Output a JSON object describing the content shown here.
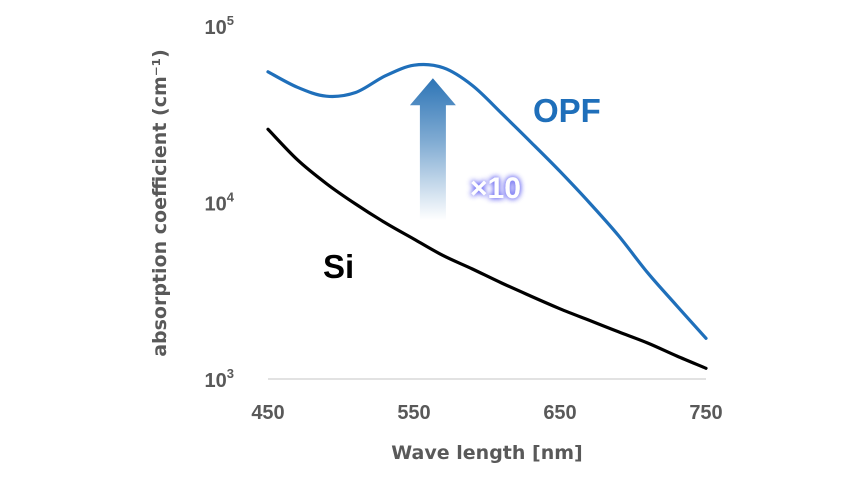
{
  "chart_data": {
    "type": "line",
    "title": "",
    "xlabel": "Wave length [nm]",
    "ylabel": "absorption coefficient (cm⁻¹)",
    "xlim": [
      450,
      750
    ],
    "ylim": [
      1000,
      100000
    ],
    "yscale": "log",
    "x_ticks": [
      450,
      550,
      650,
      750
    ],
    "x_tick_labels": [
      "450",
      "550",
      "650",
      "750"
    ],
    "y_ticks": [
      {
        "value": 1000,
        "base": "10",
        "exp": "3"
      },
      {
        "value": 10000,
        "base": "10",
        "exp": "4"
      },
      {
        "value": 100000,
        "base": "10",
        "exp": "5"
      }
    ],
    "grid": false,
    "series": [
      {
        "name": "OPF",
        "color": "#1f6fba",
        "x": [
          450,
          470,
          490,
          510,
          530,
          550,
          570,
          590,
          610,
          630,
          650,
          670,
          690,
          710,
          730,
          750
        ],
        "y": [
          55000,
          45000,
          40000,
          42000,
          52000,
          60000,
          58000,
          46000,
          32000,
          22000,
          15000,
          10000,
          6500,
          4000,
          2600,
          1700
        ]
      },
      {
        "name": "Si",
        "color": "#000000",
        "x": [
          450,
          470,
          490,
          510,
          530,
          550,
          570,
          590,
          610,
          630,
          650,
          670,
          690,
          710,
          730,
          750
        ],
        "y": [
          26000,
          17500,
          12800,
          9800,
          7700,
          6200,
          5000,
          4200,
          3500,
          2950,
          2500,
          2150,
          1850,
          1600,
          1350,
          1150
        ]
      }
    ],
    "annotations": {
      "multiplier_label": "×10",
      "arrow_from_value": 10000,
      "arrow_to_value": 48000,
      "arrow_x": 565,
      "arrow_color": "#2e75b6"
    }
  }
}
